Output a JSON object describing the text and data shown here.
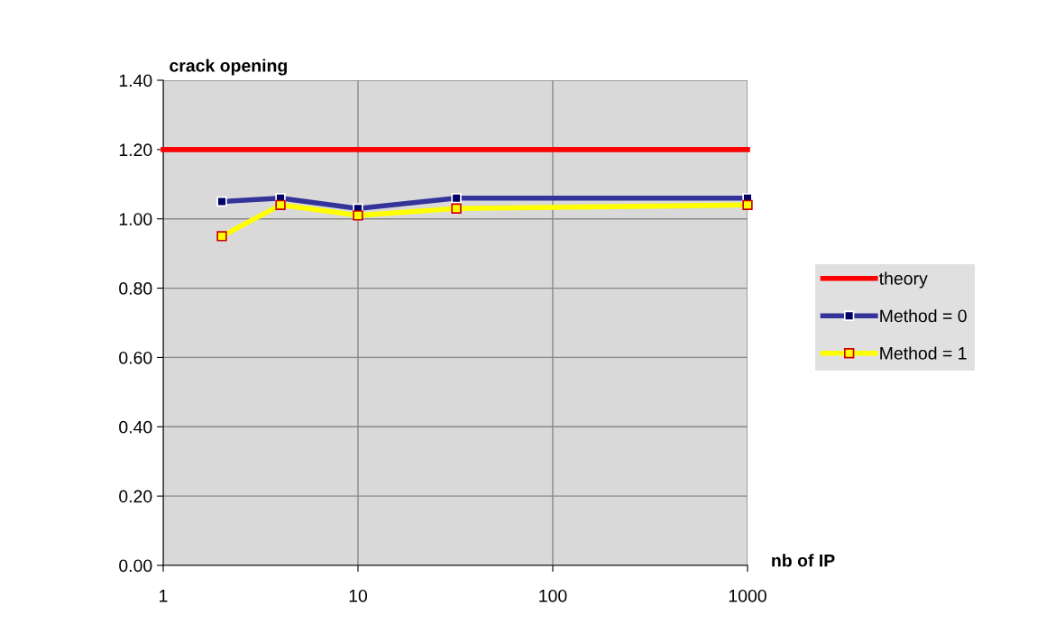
{
  "chart_data": {
    "type": "line",
    "ylabel": "crack opening",
    "xlabel": "nb of IP",
    "log": "x",
    "xlim": [
      1,
      1000
    ],
    "xticks": [
      1,
      10,
      100,
      1000
    ],
    "ylim": [
      0,
      1.4
    ],
    "yticks": [
      {
        "value": 0,
        "label": "0.00"
      },
      {
        "value": 0.2,
        "label": "0.20"
      },
      {
        "value": 0.4,
        "label": "0.40"
      },
      {
        "value": 0.6,
        "label": "0.60"
      },
      {
        "value": 0.8,
        "label": "0.80"
      },
      {
        "value": 1.0,
        "label": "1.00"
      },
      {
        "value": 1.2,
        "label": "1.20"
      },
      {
        "value": 1.4,
        "label": "1.40"
      }
    ],
    "grid": true,
    "legend": "right",
    "series": [
      {
        "name": "theory",
        "color": "#ff0000",
        "marker": "none",
        "x": [
          1,
          1000
        ],
        "values": [
          1.2,
          1.2
        ]
      },
      {
        "name": "Method = 0",
        "color": "#333399",
        "marker": "square",
        "x": [
          2,
          4,
          10,
          32,
          1000
        ],
        "values": [
          1.05,
          1.06,
          1.03,
          1.06,
          1.06
        ]
      },
      {
        "name": "Method = 1",
        "color": "#ffff00",
        "marker": "square",
        "x": [
          2,
          4,
          10,
          32,
          1000
        ],
        "values": [
          0.95,
          1.04,
          1.01,
          1.03,
          1.04
        ]
      }
    ]
  }
}
